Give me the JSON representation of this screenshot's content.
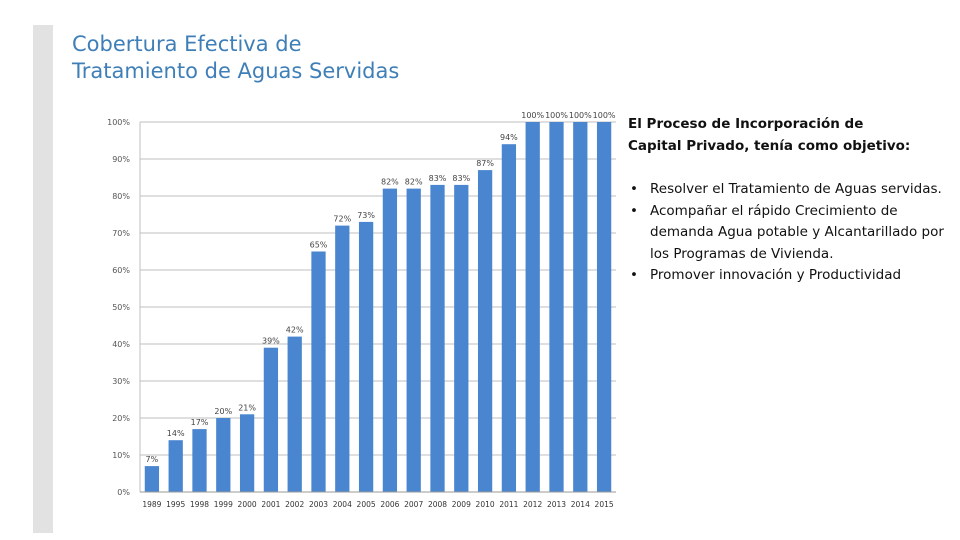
{
  "slide": {
    "title_line1": "Cobertura Efectiva de",
    "title_line2": "Tratamiento de Aguas Servidas",
    "intro_line1": "El Proceso de Incorporación de",
    "intro_line2": "Capital Privado, tenía como objetivo:",
    "bullets": [
      "Resolver el Tratamiento de Aguas servidas.",
      "Acompañar el rápido Crecimiento de demanda Agua potable y Alcantarillado por los Programas de Vivienda.",
      "Promover innovación y Productividad"
    ]
  },
  "colors": {
    "title": "#3f7fb8",
    "bar": "#4a86d0",
    "grid": "#bfbfbf",
    "side_bar": "#e2e2e2"
  },
  "chart_data": {
    "type": "bar",
    "title": "",
    "xlabel": "",
    "ylabel": "",
    "ylim": [
      0,
      100
    ],
    "ytick_step": 10,
    "ytick_suffix": "%",
    "categories": [
      "1989",
      "1995",
      "1998",
      "1999",
      "2000",
      "2001",
      "2002",
      "2003",
      "2004",
      "2005",
      "2006",
      "2007",
      "2008",
      "2009",
      "2010",
      "2011",
      "2012",
      "2013",
      "2014",
      "2015"
    ],
    "values": [
      7,
      14,
      17,
      20,
      21,
      39,
      42,
      65,
      72,
      73,
      82,
      82,
      83,
      83,
      87,
      94,
      100,
      100,
      100,
      100
    ],
    "value_labels": [
      "7%",
      "14%",
      "17%",
      "20%",
      "21%",
      "39%",
      "42%",
      "65%",
      "72%",
      "73%",
      "82%",
      "82%",
      "83%",
      "83%",
      "87%",
      "94%",
      "100%",
      "100%",
      "100%",
      "100%"
    ],
    "grid": true
  }
}
